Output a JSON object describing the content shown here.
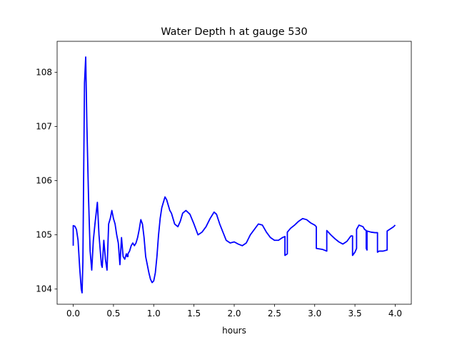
{
  "chart_data": {
    "type": "line",
    "title": "Water Depth h at gauge 530",
    "xlabel": "hours",
    "ylabel": "",
    "xlim": [
      -0.2,
      4.2
    ],
    "ylim": [
      103.72,
      108.57
    ],
    "xticks": [
      0.0,
      0.5,
      1.0,
      1.5,
      2.0,
      2.5,
      3.0,
      3.5,
      4.0
    ],
    "xtick_labels": [
      "0.0",
      "0.5",
      "1.0",
      "1.5",
      "2.0",
      "2.5",
      "3.0",
      "3.5",
      "4.0"
    ],
    "yticks": [
      104,
      105,
      106,
      107,
      108
    ],
    "ytick_labels": [
      "104",
      "105",
      "106",
      "107",
      "108"
    ],
    "grid": false,
    "series": [
      {
        "color": "#0000ff",
        "x": [
          0.0,
          0.0,
          0.02,
          0.04,
          0.06,
          0.08,
          0.1,
          0.11,
          0.12,
          0.14,
          0.155,
          0.17,
          0.19,
          0.21,
          0.23,
          0.25,
          0.27,
          0.3,
          0.32,
          0.35,
          0.36,
          0.38,
          0.4,
          0.42,
          0.44,
          0.46,
          0.48,
          0.5,
          0.52,
          0.54,
          0.56,
          0.58,
          0.6,
          0.62,
          0.64,
          0.66,
          0.67,
          0.68,
          0.68,
          0.7,
          0.72,
          0.74,
          0.76,
          0.78,
          0.8,
          0.82,
          0.84,
          0.86,
          0.88,
          0.9,
          0.92,
          0.94,
          0.96,
          0.98,
          1.0,
          1.02,
          1.04,
          1.06,
          1.08,
          1.1,
          1.12,
          1.14,
          1.16,
          1.18,
          1.2,
          1.22,
          1.24,
          1.26,
          1.3,
          1.33,
          1.36,
          1.4,
          1.45,
          1.5,
          1.55,
          1.6,
          1.65,
          1.7,
          1.75,
          1.78,
          1.82,
          1.86,
          1.9,
          1.95,
          2.0,
          2.05,
          2.1,
          2.15,
          2.2,
          2.25,
          2.3,
          2.35,
          2.4,
          2.45,
          2.5,
          2.55,
          2.6,
          2.63,
          2.63,
          2.66,
          2.66,
          2.7,
          2.75,
          2.8,
          2.85,
          2.9,
          2.95,
          3.0,
          3.02,
          3.02,
          3.1,
          3.15,
          3.15,
          3.2,
          3.25,
          3.3,
          3.35,
          3.4,
          3.45,
          3.47,
          3.47,
          3.5,
          3.52,
          3.52,
          3.55,
          3.6,
          3.62,
          3.64,
          3.64,
          3.65,
          3.65,
          3.7,
          3.75,
          3.78,
          3.78,
          3.8,
          3.85,
          3.9,
          3.9,
          3.95,
          3.98,
          4.0
        ],
        "y": [
          104.8,
          105.17,
          105.16,
          105.1,
          104.9,
          104.4,
          104.0,
          103.93,
          104.5,
          107.8,
          108.28,
          107.0,
          105.7,
          104.7,
          104.35,
          104.9,
          105.2,
          105.6,
          105.0,
          104.45,
          104.4,
          104.9,
          104.55,
          104.35,
          105.2,
          105.3,
          105.45,
          105.3,
          105.2,
          105.0,
          104.85,
          104.45,
          104.95,
          104.6,
          104.55,
          104.65,
          104.6,
          104.6,
          104.65,
          104.7,
          104.8,
          104.85,
          104.8,
          104.85,
          104.95,
          105.1,
          105.28,
          105.2,
          104.95,
          104.6,
          104.45,
          104.3,
          104.18,
          104.12,
          104.15,
          104.3,
          104.6,
          105.0,
          105.3,
          105.5,
          105.6,
          105.7,
          105.65,
          105.55,
          105.45,
          105.4,
          105.3,
          105.2,
          105.15,
          105.25,
          105.4,
          105.45,
          105.38,
          105.2,
          105.0,
          105.05,
          105.15,
          105.3,
          105.42,
          105.38,
          105.2,
          105.05,
          104.9,
          104.85,
          104.87,
          104.83,
          104.8,
          104.85,
          105.0,
          105.1,
          105.2,
          105.18,
          105.05,
          104.95,
          104.9,
          104.9,
          104.95,
          104.97,
          104.62,
          104.65,
          105.05,
          105.12,
          105.18,
          105.25,
          105.3,
          105.28,
          105.22,
          105.18,
          105.15,
          104.75,
          104.73,
          104.7,
          105.08,
          105.0,
          104.93,
          104.87,
          104.83,
          104.88,
          104.98,
          104.98,
          104.62,
          104.68,
          104.75,
          105.1,
          105.18,
          105.15,
          105.1,
          105.08,
          104.75,
          104.72,
          105.07,
          105.05,
          105.04,
          105.04,
          104.68,
          104.7,
          104.7,
          104.72,
          105.07,
          105.12,
          105.15,
          105.18
        ]
      }
    ]
  }
}
